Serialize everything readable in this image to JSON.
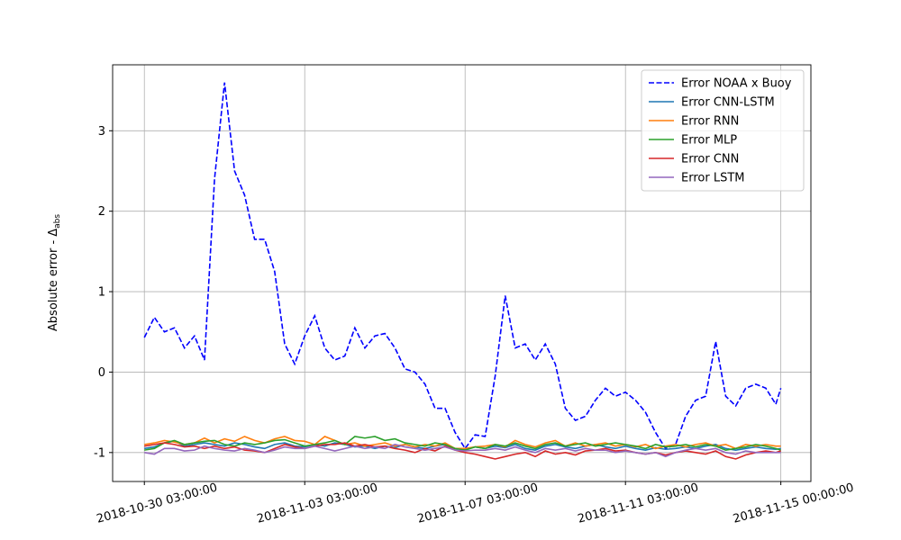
{
  "chart_data": {
    "type": "line",
    "ylabel": "Absolute error - Δ",
    "ylabel_sub": "abs",
    "x": [
      "2018-10-30 03:00:00",
      "2018-10-30 09:00:00",
      "2018-10-30 15:00:00",
      "2018-10-30 21:00:00",
      "2018-10-31 03:00:00",
      "2018-10-31 09:00:00",
      "2018-10-31 15:00:00",
      "2018-10-31 21:00:00",
      "2018-11-01 03:00:00",
      "2018-11-01 09:00:00",
      "2018-11-01 15:00:00",
      "2018-11-01 21:00:00",
      "2018-11-02 03:00:00",
      "2018-11-02 09:00:00",
      "2018-11-02 15:00:00",
      "2018-11-02 21:00:00",
      "2018-11-03 03:00:00",
      "2018-11-03 09:00:00",
      "2018-11-03 15:00:00",
      "2018-11-03 21:00:00",
      "2018-11-04 03:00:00",
      "2018-11-04 09:00:00",
      "2018-11-04 15:00:00",
      "2018-11-04 21:00:00",
      "2018-11-05 03:00:00",
      "2018-11-05 09:00:00",
      "2018-11-05 15:00:00",
      "2018-11-05 21:00:00",
      "2018-11-06 03:00:00",
      "2018-11-06 09:00:00",
      "2018-11-06 15:00:00",
      "2018-11-06 21:00:00",
      "2018-11-07 03:00:00",
      "2018-11-07 09:00:00",
      "2018-11-07 15:00:00",
      "2018-11-07 21:00:00",
      "2018-11-08 03:00:00",
      "2018-11-08 09:00:00",
      "2018-11-08 15:00:00",
      "2018-11-08 21:00:00",
      "2018-11-09 03:00:00",
      "2018-11-09 09:00:00",
      "2018-11-09 15:00:00",
      "2018-11-09 21:00:00",
      "2018-11-10 03:00:00",
      "2018-11-10 09:00:00",
      "2018-11-10 15:00:00",
      "2018-11-10 21:00:00",
      "2018-11-11 03:00:00",
      "2018-11-11 09:00:00",
      "2018-11-11 15:00:00",
      "2018-11-11 21:00:00",
      "2018-11-12 03:00:00",
      "2018-11-12 09:00:00",
      "2018-11-12 15:00:00",
      "2018-11-12 21:00:00",
      "2018-11-13 03:00:00",
      "2018-11-13 09:00:00",
      "2018-11-13 15:00:00",
      "2018-11-13 21:00:00",
      "2018-11-14 03:00:00",
      "2018-11-14 09:00:00",
      "2018-11-14 15:00:00",
      "2018-11-14 21:00:00",
      "2018-11-15 00:00:00"
    ],
    "series": [
      {
        "name": "Error NOAA x Buoy",
        "color": "#0000ff",
        "dashed": true,
        "values": [
          0.43,
          0.68,
          0.5,
          0.55,
          0.3,
          0.45,
          0.15,
          2.4,
          3.6,
          2.5,
          2.2,
          1.65,
          1.65,
          1.25,
          0.35,
          0.1,
          0.45,
          0.7,
          0.3,
          0.15,
          0.2,
          0.55,
          0.3,
          0.45,
          0.48,
          0.3,
          0.04,
          0.0,
          -0.15,
          -0.45,
          -0.45,
          -0.75,
          -0.95,
          -0.78,
          -0.8,
          -0.05,
          0.95,
          0.3,
          0.35,
          0.15,
          0.35,
          0.1,
          -0.45,
          -0.6,
          -0.55,
          -0.35,
          -0.2,
          -0.3,
          -0.25,
          -0.35,
          -0.5,
          -0.75,
          -0.95,
          -0.9,
          -0.55,
          -0.35,
          -0.3,
          0.38,
          -0.3,
          -0.42,
          -0.2,
          -0.15,
          -0.2,
          -0.4,
          -0.2
        ]
      },
      {
        "name": "Error CNN-LSTM",
        "color": "#1f77b4",
        "values": [
          -0.95,
          -0.93,
          -0.88,
          -0.86,
          -0.92,
          -0.9,
          -0.88,
          -0.9,
          -0.92,
          -0.88,
          -0.9,
          -0.93,
          -0.95,
          -0.9,
          -0.88,
          -0.92,
          -0.93,
          -0.9,
          -0.92,
          -0.88,
          -0.9,
          -0.93,
          -0.92,
          -0.95,
          -0.92,
          -0.94,
          -0.9,
          -0.93,
          -0.95,
          -0.92,
          -0.9,
          -0.95,
          -0.96,
          -0.93,
          -0.95,
          -0.92,
          -0.94,
          -0.9,
          -0.95,
          -0.97,
          -0.92,
          -0.9,
          -0.93,
          -0.95,
          -0.92,
          -0.9,
          -0.93,
          -0.95,
          -0.92,
          -0.95,
          -0.97,
          -0.94,
          -0.96,
          -0.95,
          -0.93,
          -0.95,
          -0.92,
          -0.9,
          -0.95,
          -0.97,
          -0.95,
          -0.93,
          -0.95,
          -0.96,
          -0.95
        ]
      },
      {
        "name": "Error RNN",
        "color": "#ff7f0e",
        "values": [
          -0.9,
          -0.88,
          -0.85,
          -0.87,
          -0.9,
          -0.88,
          -0.82,
          -0.88,
          -0.83,
          -0.86,
          -0.8,
          -0.85,
          -0.88,
          -0.83,
          -0.8,
          -0.85,
          -0.86,
          -0.9,
          -0.8,
          -0.85,
          -0.9,
          -0.88,
          -0.92,
          -0.9,
          -0.88,
          -0.92,
          -0.9,
          -0.93,
          -0.9,
          -0.92,
          -0.88,
          -0.95,
          -0.95,
          -0.93,
          -0.92,
          -0.9,
          -0.93,
          -0.85,
          -0.9,
          -0.93,
          -0.88,
          -0.85,
          -0.92,
          -0.88,
          -0.92,
          -0.9,
          -0.88,
          -0.92,
          -0.9,
          -0.93,
          -0.9,
          -0.95,
          -0.92,
          -0.9,
          -0.93,
          -0.9,
          -0.88,
          -0.92,
          -0.9,
          -0.95,
          -0.9,
          -0.92,
          -0.9,
          -0.92,
          -0.92
        ]
      },
      {
        "name": "Error MLP",
        "color": "#2ca02c",
        "values": [
          -0.97,
          -0.95,
          -0.88,
          -0.85,
          -0.9,
          -0.88,
          -0.86,
          -0.85,
          -0.9,
          -0.92,
          -0.88,
          -0.9,
          -0.88,
          -0.85,
          -0.84,
          -0.88,
          -0.92,
          -0.9,
          -0.88,
          -0.85,
          -0.9,
          -0.8,
          -0.82,
          -0.8,
          -0.85,
          -0.83,
          -0.88,
          -0.9,
          -0.92,
          -0.88,
          -0.9,
          -0.95,
          -0.97,
          -0.93,
          -0.95,
          -0.9,
          -0.92,
          -0.88,
          -0.92,
          -0.95,
          -0.9,
          -0.88,
          -0.92,
          -0.9,
          -0.88,
          -0.92,
          -0.9,
          -0.88,
          -0.9,
          -0.92,
          -0.95,
          -0.9,
          -0.93,
          -0.92,
          -0.9,
          -0.93,
          -0.9,
          -0.92,
          -0.97,
          -0.95,
          -0.93,
          -0.9,
          -0.92,
          -0.95,
          -0.97
        ]
      },
      {
        "name": "Error CNN",
        "color": "#d62728",
        "values": [
          -0.92,
          -0.9,
          -0.88,
          -0.9,
          -0.93,
          -0.92,
          -0.95,
          -0.92,
          -0.95,
          -0.93,
          -0.97,
          -0.98,
          -1.0,
          -0.95,
          -0.9,
          -0.93,
          -0.95,
          -0.92,
          -0.9,
          -0.9,
          -0.88,
          -0.92,
          -0.9,
          -0.93,
          -0.92,
          -0.95,
          -0.97,
          -1.0,
          -0.95,
          -0.98,
          -0.92,
          -0.97,
          -1.0,
          -1.02,
          -1.05,
          -1.08,
          -1.05,
          -1.02,
          -1.0,
          -1.05,
          -0.98,
          -1.02,
          -1.0,
          -1.03,
          -0.98,
          -0.97,
          -0.95,
          -0.98,
          -0.97,
          -1.0,
          -1.02,
          -1.0,
          -1.03,
          -1.0,
          -0.98,
          -1.0,
          -1.02,
          -0.98,
          -1.05,
          -1.08,
          -1.03,
          -1.0,
          -0.98,
          -1.0,
          -0.98
        ]
      },
      {
        "name": "Error LSTM",
        "color": "#9467bd",
        "values": [
          -1.0,
          -1.02,
          -0.95,
          -0.95,
          -0.98,
          -0.97,
          -0.92,
          -0.95,
          -0.97,
          -0.98,
          -0.95,
          -0.97,
          -1.0,
          -0.97,
          -0.93,
          -0.95,
          -0.95,
          -0.92,
          -0.95,
          -0.98,
          -0.95,
          -0.92,
          -0.95,
          -0.93,
          -0.95,
          -0.9,
          -0.93,
          -0.95,
          -0.97,
          -0.95,
          -0.93,
          -0.97,
          -0.98,
          -0.97,
          -0.97,
          -0.95,
          -0.97,
          -0.93,
          -0.97,
          -1.0,
          -0.95,
          -0.97,
          -0.95,
          -0.98,
          -0.95,
          -0.97,
          -0.97,
          -1.0,
          -0.98,
          -1.0,
          -1.02,
          -1.0,
          -1.05,
          -1.0,
          -0.97,
          -0.95,
          -0.97,
          -0.95,
          -1.0,
          -1.02,
          -0.98,
          -1.0,
          -1.0,
          -1.0,
          -1.0
        ]
      }
    ],
    "xlim": [
      "2018-10-29 08:00:00",
      "2018-11-15 18:00:00"
    ],
    "xticks": [
      "2018-10-30 03:00:00",
      "2018-11-03 03:00:00",
      "2018-11-07 03:00:00",
      "2018-11-11 03:00:00",
      "2018-11-15 00:00:00"
    ],
    "ylim": [
      -1.36,
      3.82
    ],
    "yticks": [
      -1,
      0,
      1,
      2,
      3
    ],
    "grid": true,
    "legend": "upper right"
  }
}
